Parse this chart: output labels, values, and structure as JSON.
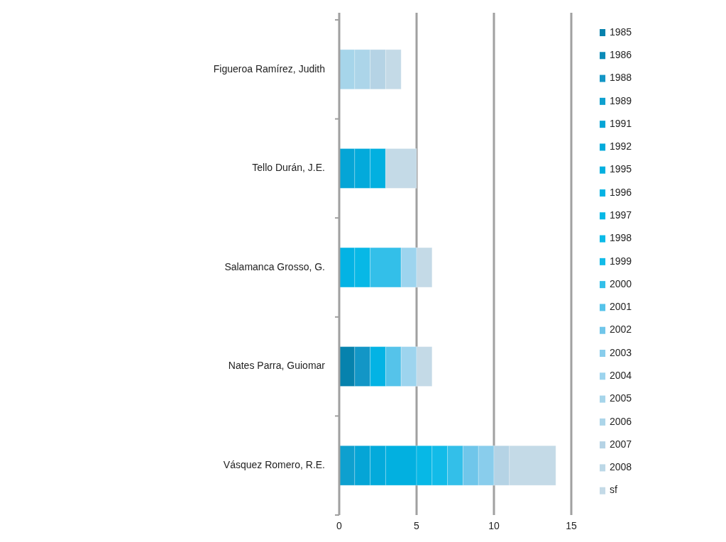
{
  "chart_data": {
    "type": "bar",
    "orientation": "horizontal",
    "stacked": true,
    "categories": [
      "Figueroa Ramírez, Judith",
      "Tello Durán, J.E.",
      "Salamanca Grosso, G.",
      "Nates Parra, Guiomar",
      "Vásquez Romero, R.E."
    ],
    "xlim": [
      0,
      15
    ],
    "xticks": [
      0,
      5,
      10,
      15
    ],
    "grid": "x",
    "legend": "right",
    "series": [
      {
        "name": "1985",
        "color": "#0682ad",
        "values": [
          null,
          null,
          null,
          1,
          null
        ]
      },
      {
        "name": "1986",
        "color": "#0a8bb8",
        "values": [
          null,
          null,
          null,
          null,
          null
        ]
      },
      {
        "name": "1988",
        "color": "#1396c6",
        "values": [
          null,
          null,
          null,
          1,
          null
        ]
      },
      {
        "name": "1989",
        "color": "#0ea0cf",
        "values": [
          null,
          null,
          null,
          null,
          1
        ]
      },
      {
        "name": "1991",
        "color": "#05a5d6",
        "values": [
          null,
          1,
          null,
          null,
          1
        ]
      },
      {
        "name": "1992",
        "color": "#03aadb",
        "values": [
          null,
          1,
          null,
          null,
          1
        ]
      },
      {
        "name": "1995",
        "color": "#02b0e0",
        "values": [
          null,
          1,
          null,
          null,
          2
        ]
      },
      {
        "name": "1996",
        "color": "#03b3e4",
        "values": [
          null,
          null,
          1,
          1,
          null
        ]
      },
      {
        "name": "1997",
        "color": "#07b8e6",
        "values": [
          null,
          null,
          1,
          null,
          1
        ]
      },
      {
        "name": "1998",
        "color": "#0bbae8",
        "values": [
          null,
          null,
          null,
          null,
          null
        ]
      },
      {
        "name": "1999",
        "color": "#12bbe8",
        "values": [
          null,
          null,
          null,
          null,
          1
        ]
      },
      {
        "name": "2000",
        "color": "#33bfe9",
        "values": [
          null,
          null,
          2,
          null,
          1
        ]
      },
      {
        "name": "2001",
        "color": "#55c3ea",
        "values": [
          null,
          null,
          null,
          1,
          null
        ]
      },
      {
        "name": "2002",
        "color": "#70c6ea",
        "values": [
          null,
          null,
          null,
          null,
          1
        ]
      },
      {
        "name": "2003",
        "color": "#89cdec",
        "values": [
          null,
          null,
          null,
          null,
          1
        ]
      },
      {
        "name": "2004",
        "color": "#9dd4ee",
        "values": [
          null,
          null,
          1,
          1,
          null
        ]
      },
      {
        "name": "2005",
        "color": "#a6d5ea",
        "values": [
          1,
          null,
          null,
          null,
          null
        ]
      },
      {
        "name": "2006",
        "color": "#acd5e9",
        "values": [
          1,
          null,
          null,
          null,
          null
        ]
      },
      {
        "name": "2007",
        "color": "#b5d3e5",
        "values": [
          1,
          null,
          null,
          null,
          1
        ]
      },
      {
        "name": "2008",
        "color": "#bcd8e7",
        "values": [
          null,
          null,
          null,
          null,
          null
        ]
      },
      {
        "name": "sf",
        "color": "#c4dae7",
        "values": [
          1,
          2,
          1,
          1,
          3
        ]
      }
    ]
  }
}
